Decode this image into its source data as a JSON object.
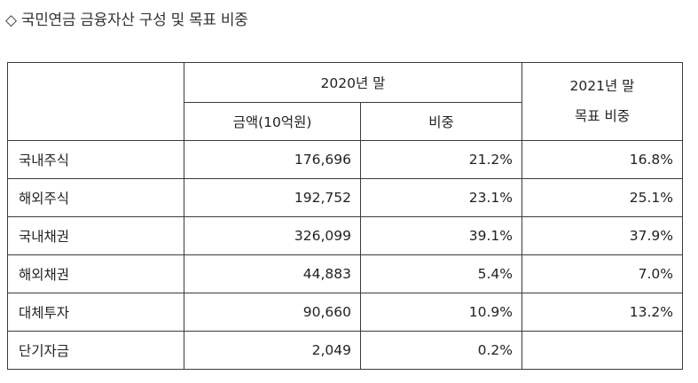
{
  "title": "◇ 국민연금 금융자산 구성 및 목표 비중",
  "header": {
    "group_2020": "2020년 말",
    "amount": "금액(10억원)",
    "share": "비중",
    "target_line1": "2021년 말",
    "target_line2": "목표 비중"
  },
  "rows": [
    {
      "name": "국내주식",
      "amount": "176,696",
      "share": "21.2%",
      "target": "16.8%"
    },
    {
      "name": "해외주식",
      "amount": "192,752",
      "share": "23.1%",
      "target": "25.1%"
    },
    {
      "name": "국내채권",
      "amount": "326,099",
      "share": "39.1%",
      "target": "37.9%"
    },
    {
      "name": "해외채권",
      "amount": "44,883",
      "share": "5.4%",
      "target": "7.0%"
    },
    {
      "name": "대체투자",
      "amount": "90,660",
      "share": "10.9%",
      "target": "13.2%"
    },
    {
      "name": "단기자금",
      "amount": "2,049",
      "share": "0.2%",
      "target": ""
    }
  ]
}
